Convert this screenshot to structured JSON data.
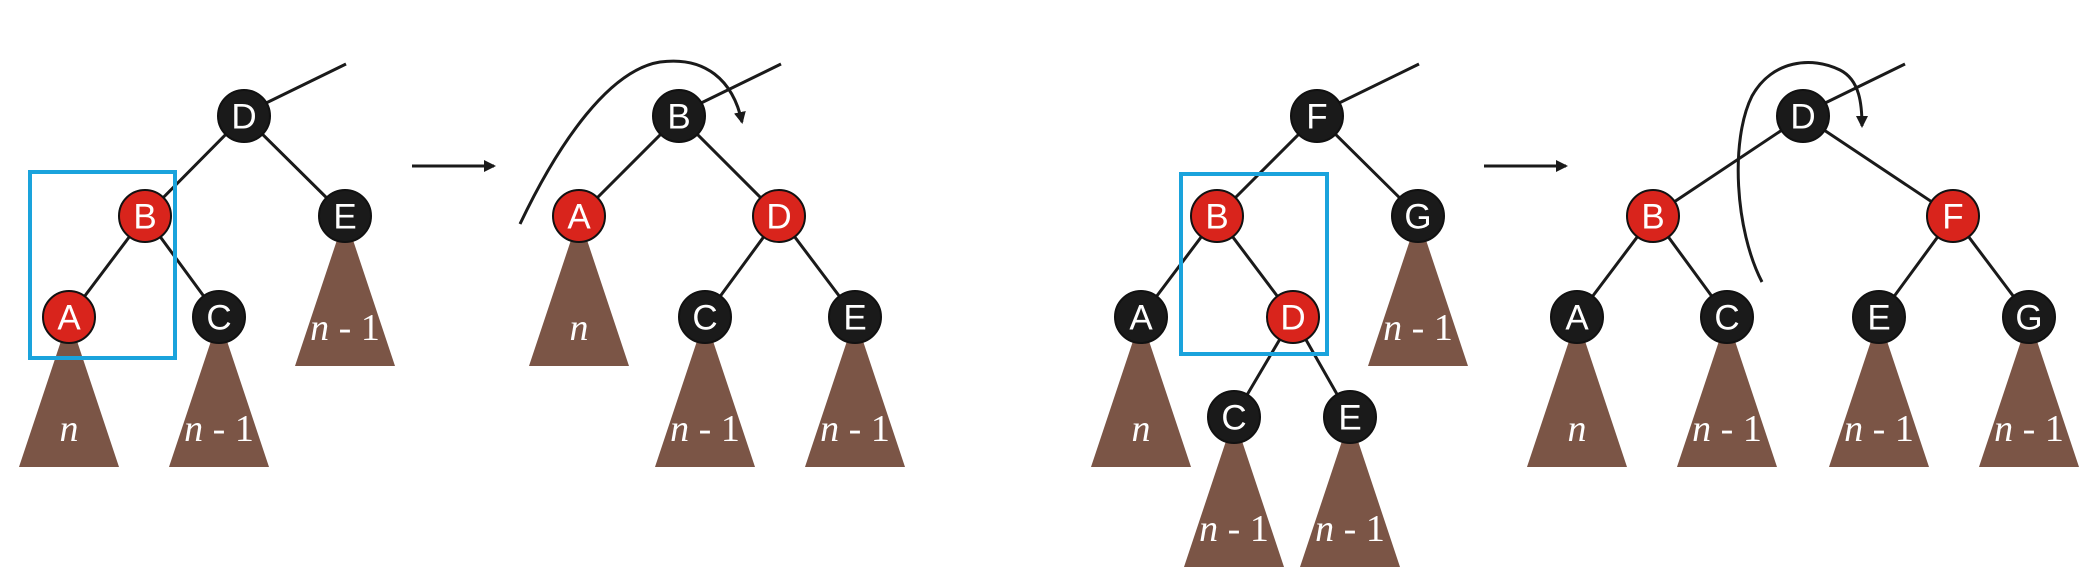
{
  "colors": {
    "red_node": "#d9241c",
    "black_node": "#1a1a1a",
    "subtree": "#7b5546",
    "highlight": "#1aa3dc",
    "edge": "#1a1a1a"
  },
  "diagram": {
    "panels": [
      {
        "id": "case1-before",
        "nodes": [
          {
            "id": "D",
            "label": "D",
            "color": "black"
          },
          {
            "id": "B",
            "label": "B",
            "color": "red"
          },
          {
            "id": "E",
            "label": "E",
            "color": "black"
          },
          {
            "id": "A",
            "label": "A",
            "color": "red"
          },
          {
            "id": "C",
            "label": "C",
            "color": "black"
          }
        ],
        "subtrees": [
          {
            "under": "A",
            "var": "n",
            "suffix": ""
          },
          {
            "under": "C",
            "var": "n",
            "suffix": " - 1"
          },
          {
            "under": "E",
            "var": "n",
            "suffix": " - 1"
          }
        ]
      },
      {
        "id": "case1-after",
        "nodes": [
          {
            "id": "B",
            "label": "B",
            "color": "black"
          },
          {
            "id": "A",
            "label": "A",
            "color": "red"
          },
          {
            "id": "D",
            "label": "D",
            "color": "red"
          },
          {
            "id": "C",
            "label": "C",
            "color": "black"
          },
          {
            "id": "E",
            "label": "E",
            "color": "black"
          }
        ],
        "subtrees": [
          {
            "under": "A",
            "var": "n",
            "suffix": ""
          },
          {
            "under": "C",
            "var": "n",
            "suffix": " - 1"
          },
          {
            "under": "E",
            "var": "n",
            "suffix": " - 1"
          }
        ]
      },
      {
        "id": "case2-before",
        "nodes": [
          {
            "id": "F",
            "label": "F",
            "color": "black"
          },
          {
            "id": "B",
            "label": "B",
            "color": "red"
          },
          {
            "id": "G",
            "label": "G",
            "color": "black"
          },
          {
            "id": "A",
            "label": "A",
            "color": "black"
          },
          {
            "id": "D",
            "label": "D",
            "color": "red"
          },
          {
            "id": "C",
            "label": "C",
            "color": "black"
          },
          {
            "id": "E",
            "label": "E",
            "color": "black"
          }
        ],
        "subtrees": [
          {
            "under": "A",
            "var": "n",
            "suffix": ""
          },
          {
            "under": "G",
            "var": "n",
            "suffix": " - 1"
          },
          {
            "under": "C",
            "var": "n",
            "suffix": " - 1"
          },
          {
            "under": "E",
            "var": "n",
            "suffix": " - 1"
          }
        ]
      },
      {
        "id": "case2-after",
        "nodes": [
          {
            "id": "D",
            "label": "D",
            "color": "black"
          },
          {
            "id": "B",
            "label": "B",
            "color": "red"
          },
          {
            "id": "F",
            "label": "F",
            "color": "red"
          },
          {
            "id": "A",
            "label": "A",
            "color": "black"
          },
          {
            "id": "C",
            "label": "C",
            "color": "black"
          },
          {
            "id": "E",
            "label": "E",
            "color": "black"
          },
          {
            "id": "G",
            "label": "G",
            "color": "black"
          }
        ],
        "subtrees": [
          {
            "under": "A",
            "var": "n",
            "suffix": ""
          },
          {
            "under": "C",
            "var": "n",
            "suffix": " - 1"
          },
          {
            "under": "E",
            "var": "n",
            "suffix": " - 1"
          },
          {
            "under": "G",
            "var": "n",
            "suffix": " - 1"
          }
        ]
      }
    ]
  }
}
